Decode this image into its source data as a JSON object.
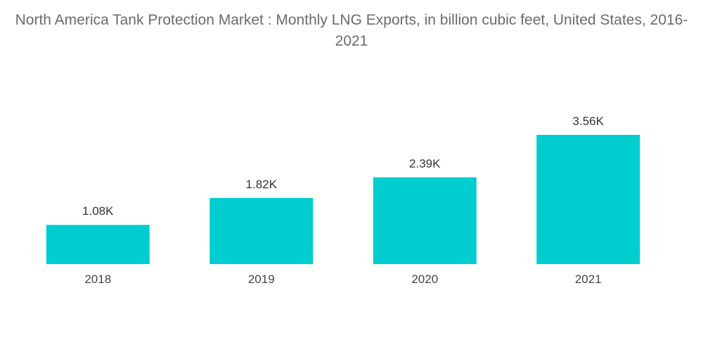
{
  "chart_data": {
    "type": "bar",
    "title": "North America Tank Protection Market : Monthly LNG Exports, in billion cubic feet, United States, 2016-2021",
    "categories": [
      "2018",
      "2019",
      "2020",
      "2021"
    ],
    "values": [
      1080,
      1820,
      2390,
      3560
    ],
    "value_labels": [
      "1.08K",
      "1.82K",
      "2.39K",
      "3.56K"
    ],
    "xlabel": "",
    "ylabel": "",
    "ylim": [
      0,
      3560
    ],
    "grid": false,
    "legend": "none",
    "colors": {
      "bar": "#00CDCF",
      "axis_line": "#dddddd"
    }
  }
}
